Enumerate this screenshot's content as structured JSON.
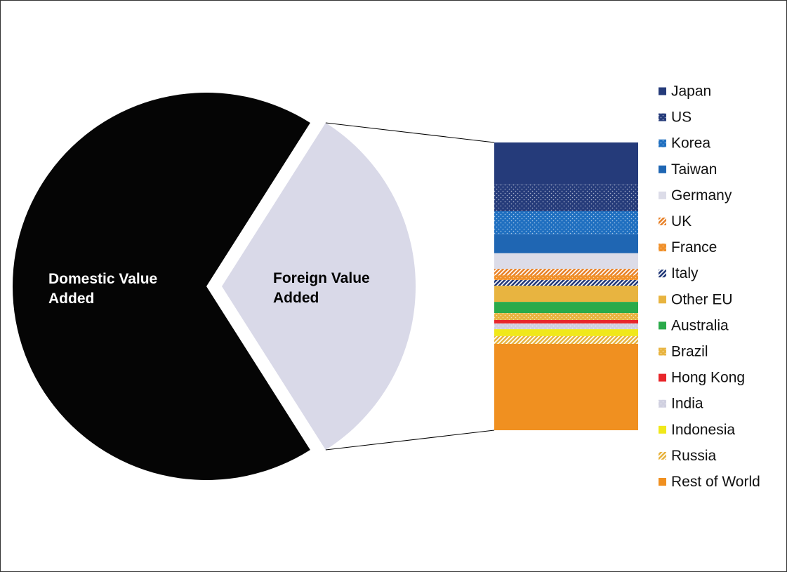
{
  "chart_data": {
    "type": "pie-of-bar",
    "categories": [
      "Domestic Value Added",
      "Foreign Value Added"
    ],
    "values": [
      68,
      32
    ],
    "colors": [
      "#050505",
      "#d9d9e8"
    ],
    "breakdown": {
      "categories": [
        "Japan",
        "US",
        "Korea",
        "Taiwan",
        "Germany",
        "UK",
        "France",
        "Italy",
        "Other EU",
        "Australia",
        "Brazil",
        "Hong Kong",
        "India",
        "Indonesia",
        "Russia",
        "Rest of World"
      ],
      "values": [
        14.6,
        9.3,
        8.0,
        6.6,
        5.4,
        2.2,
        1.7,
        2.0,
        5.6,
        3.9,
        2.4,
        1.2,
        2.0,
        2.4,
        2.7,
        30.0
      ],
      "colors": [
        "#253b7a",
        "#253b7a",
        "#1f6fc0",
        "#1f66b3",
        "#dcdce8",
        "#e8822a",
        "#f0902a",
        "#253b7a",
        "#e8b440",
        "#2aaa4a",
        "#e8b440",
        "#e8262a",
        "#d0d0e0",
        "#f0e81a",
        "#e8b440",
        "#f09020"
      ],
      "patterns": [
        "solid",
        "dots",
        "dots",
        "solid",
        "solid",
        "hatch",
        "dots",
        "hatch",
        "solid",
        "solid",
        "dots",
        "solid",
        "dots",
        "solid",
        "hatch",
        "solid"
      ]
    }
  }
}
